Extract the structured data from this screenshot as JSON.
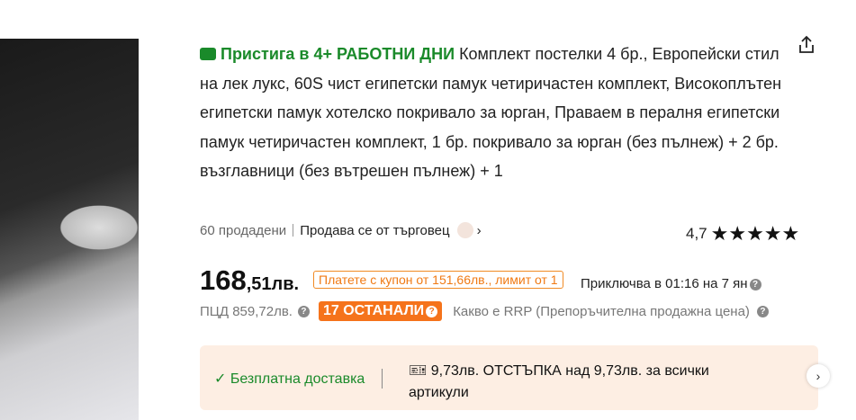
{
  "product": {
    "shipping_label": "Пристига в 4+ РАБОТНИ ДНИ",
    "title": "Комплект постелки 4 бр., Европейски стил на лек лукс, 60S чист египетски памук четиричастен комплект, Високоплътен египетски памук хотелско покривало за юрган, Праваем в пералня египетски памук четиричастен комплект, 1 бр. покривало за юрган (без пълнеж) + 2 бр. възглавници (без вътрешен пълнеж) + 1",
    "sold": "60 продадени",
    "seller": "Продава се от търговец",
    "rating": "4,7",
    "stars": "★★★★★",
    "price_main": "168",
    "price_cents": ",51лв.",
    "coupon": "Платете с купон от 151,66лв., лимит от 1",
    "ends": "Приключва в 01:16 на 7 ян",
    "rrp": "ПЦД 859,72лв.",
    "remaining": "17 ОСТАНАЛИ",
    "rrp_info": "Какво е RRP (Препоръчителна продажна цена)"
  },
  "banner": {
    "free_shipping": "Безплатна доставка",
    "discount": "9,73лв. ОТСТЪПКА над 9,73лв. за всички артикули"
  },
  "colors": {
    "green": "#1a8a2a",
    "orange": "#f5731b",
    "banner_bg": "#fdeee3"
  }
}
